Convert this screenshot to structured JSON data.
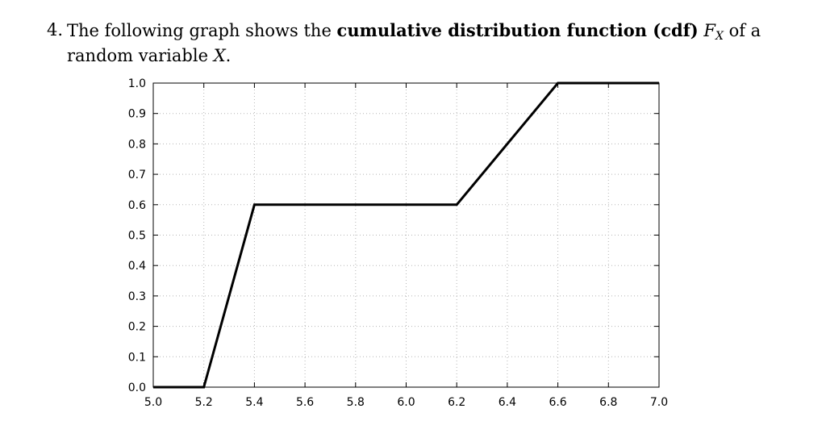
{
  "problem": {
    "number": "4.",
    "text_before": "The following graph shows the ",
    "bold_text": "cumulative distribution function (cdf)",
    "function_symbol": "F",
    "function_subscript": "X",
    "text_middle": " of a random variable ",
    "variable": "X",
    "text_after": "."
  },
  "chart_data": {
    "type": "line",
    "title": "",
    "xlabel": "",
    "ylabel": "",
    "xlim": [
      5.0,
      7.0
    ],
    "ylim": [
      0.0,
      1.0
    ],
    "grid": true,
    "x_ticks": [
      "5.0",
      "5.2",
      "5.4",
      "5.6",
      "5.8",
      "6.0",
      "6.2",
      "6.4",
      "6.6",
      "6.8",
      "7.0"
    ],
    "y_ticks": [
      "0.0",
      "0.1",
      "0.2",
      "0.3",
      "0.4",
      "0.5",
      "0.6",
      "0.7",
      "0.8",
      "0.9",
      "1.0"
    ],
    "series": [
      {
        "x": [
          5.0,
          5.2,
          5.4,
          6.2,
          6.6,
          7.0
        ],
        "y": [
          0.0,
          0.0,
          0.6,
          0.6,
          1.0,
          1.0
        ]
      }
    ]
  }
}
